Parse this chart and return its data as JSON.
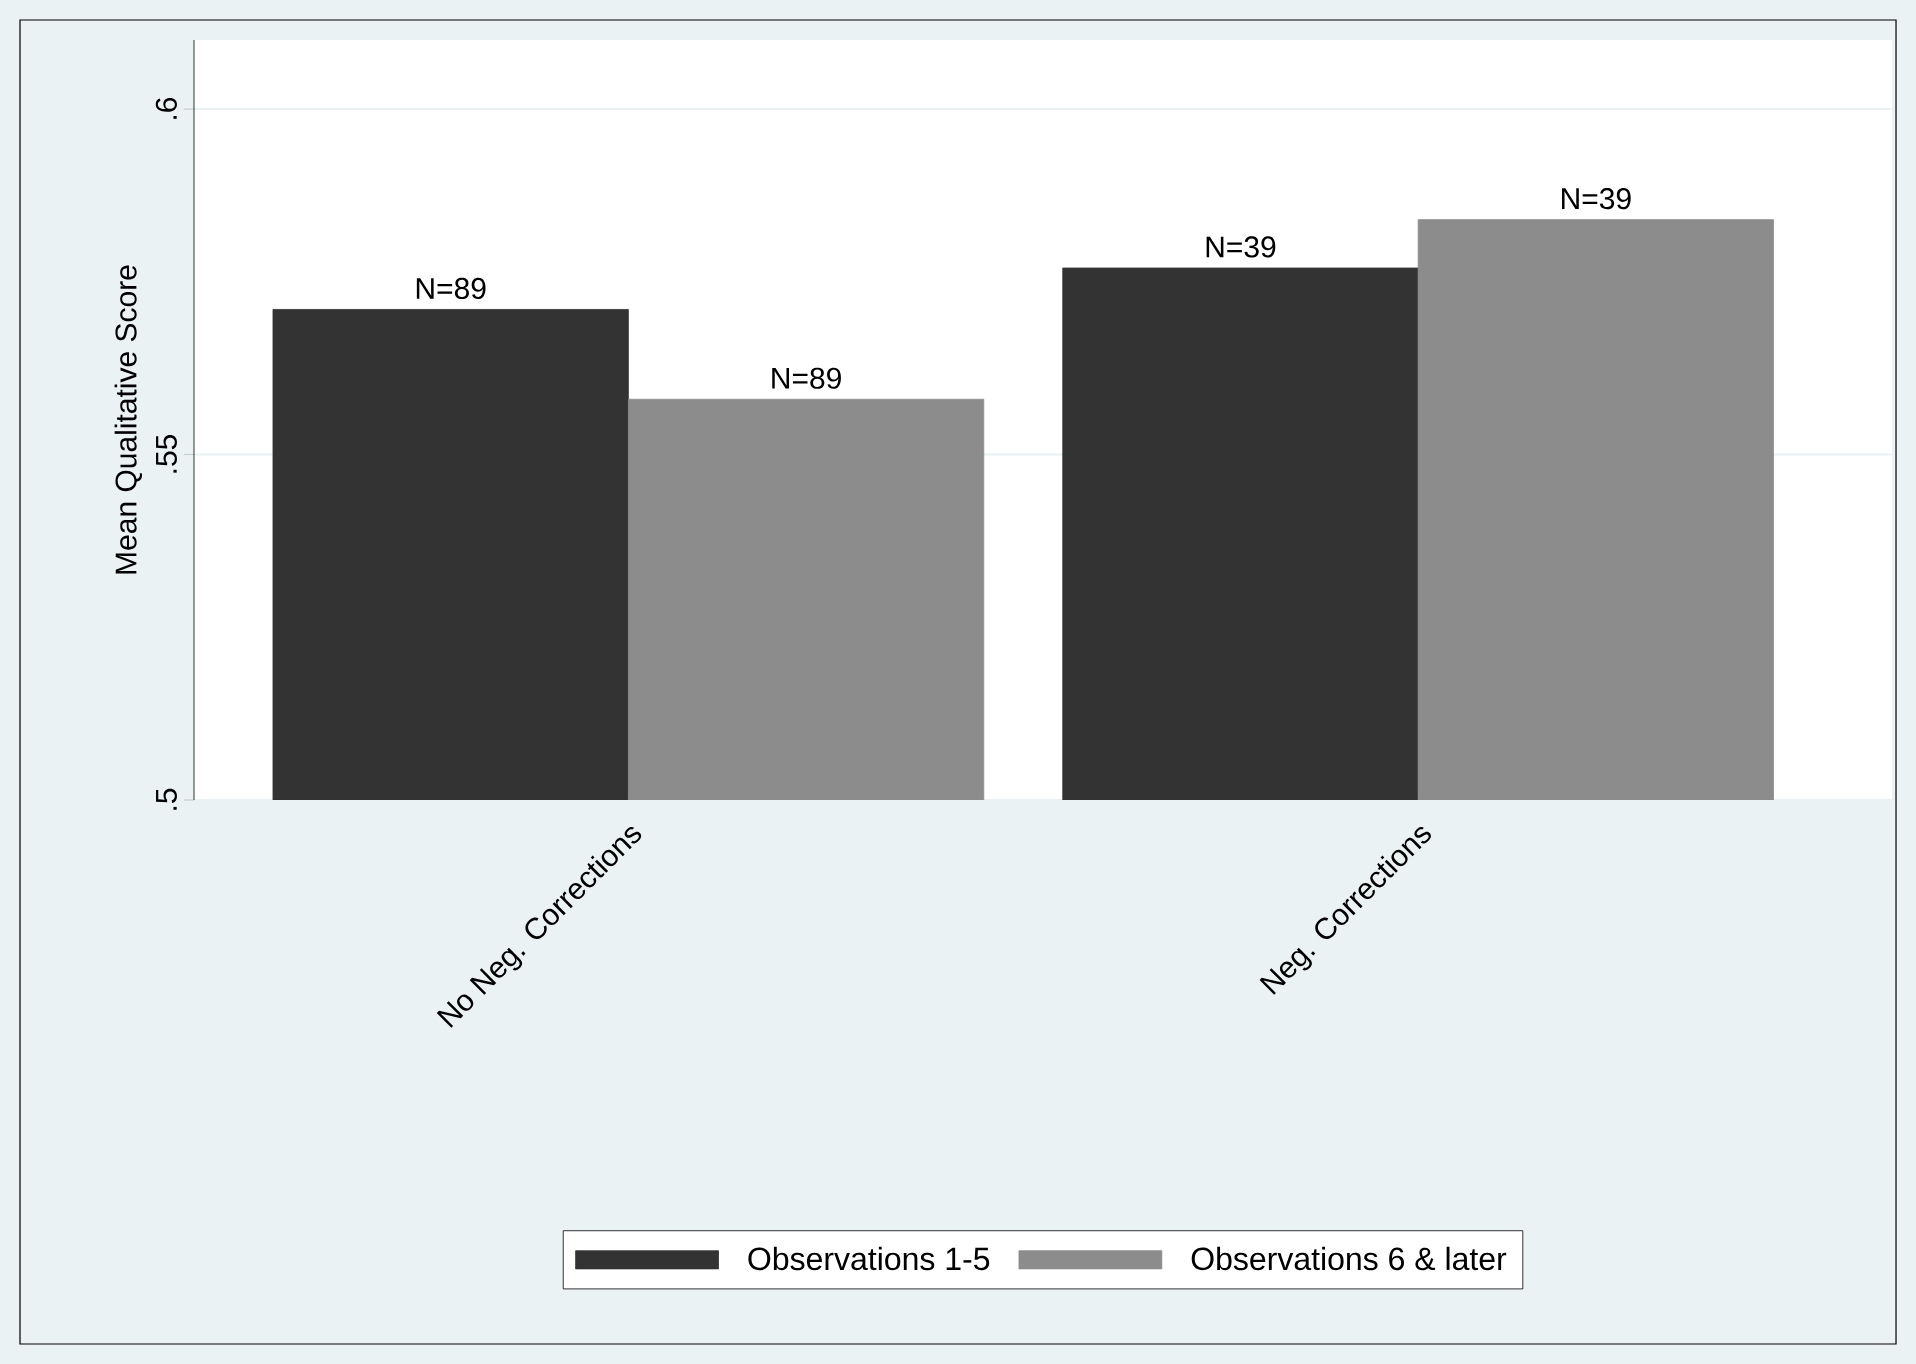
{
  "chart_data": {
    "type": "bar",
    "ylabel": "Mean Qualitative Score",
    "categories": [
      "No Neg. Corrections",
      "Neg. Corrections"
    ],
    "series": [
      {
        "name": "Observations 1-5",
        "color": "#333333",
        "values": [
          0.571,
          0.577
        ]
      },
      {
        "name": "Observations 6 & later",
        "color": "#8c8c8c",
        "values": [
          0.558,
          0.584
        ]
      }
    ],
    "annotations": [
      "N=89",
      "N=89",
      "N=39",
      "N=39"
    ],
    "ylim": [
      0.5,
      0.61
    ],
    "yticks": [
      {
        "value": 0.5,
        "label": ".5"
      },
      {
        "value": 0.55,
        "label": ".55"
      },
      {
        "value": 0.6,
        "label": ".6"
      }
    ],
    "grid": "y",
    "legend": "bottom"
  }
}
